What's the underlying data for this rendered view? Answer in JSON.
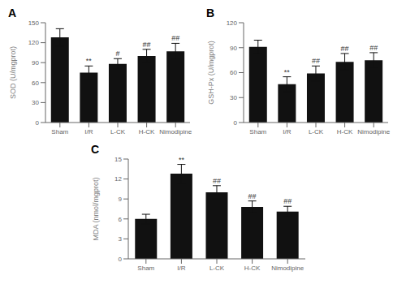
{
  "chart_data": [
    {
      "type": "bar",
      "title": "A",
      "ylabel": "SOD (U/mgprot)",
      "categories": [
        "Sham",
        "I/R",
        "L-CK",
        "H-CK",
        "Nimodipine"
      ],
      "values": [
        128,
        75,
        88,
        100,
        107
      ],
      "errors": [
        13,
        10,
        8,
        10,
        12
      ],
      "annotations": [
        null,
        "**",
        "#",
        "##",
        "##"
      ],
      "color": "#111111",
      "ylim": [
        0,
        150
      ],
      "yticks": [
        0,
        30,
        60,
        90,
        120,
        150
      ],
      "grid": false
    },
    {
      "type": "bar",
      "title": "B",
      "ylabel": "GSH-Px (U/mgprot)",
      "categories": [
        "Sham",
        "I/R",
        "L-CK",
        "H-CK",
        "Nimodipine"
      ],
      "values": [
        91,
        46,
        59,
        73,
        75
      ],
      "errors": [
        8,
        9,
        9,
        10,
        9
      ],
      "annotations": [
        null,
        "**",
        "##",
        "##",
        "##"
      ],
      "color": "#111111",
      "ylim": [
        0,
        120
      ],
      "yticks": [
        0,
        30,
        60,
        90,
        120
      ],
      "grid": false
    },
    {
      "type": "bar",
      "title": "C",
      "ylabel": "MDA (nmol/mgprot)",
      "categories": [
        "Sham",
        "I/R",
        "L-CK",
        "H-CK",
        "Nimodipine"
      ],
      "values": [
        6.0,
        12.8,
        10.0,
        7.8,
        7.1
      ],
      "errors": [
        0.7,
        1.4,
        1.0,
        0.9,
        0.8
      ],
      "annotations": [
        null,
        "**",
        "##",
        "##",
        "##"
      ],
      "color": "#111111",
      "ylim": [
        0,
        15
      ],
      "yticks": [
        0,
        3,
        6,
        9,
        12,
        15
      ],
      "grid": false
    }
  ]
}
